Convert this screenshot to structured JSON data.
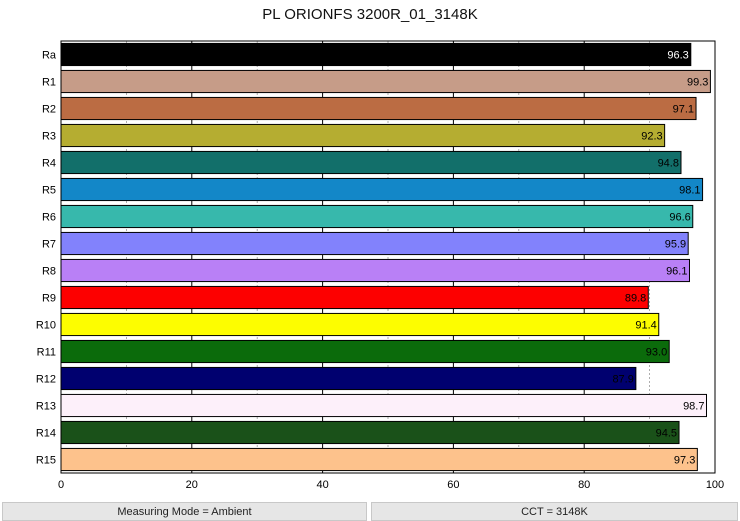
{
  "chart_data": {
    "type": "bar",
    "orientation": "horizontal",
    "title": "PL ORIONFS 3200R_01_3148K",
    "categories": [
      "Ra",
      "R1",
      "R2",
      "R3",
      "R4",
      "R5",
      "R6",
      "R7",
      "R8",
      "R9",
      "R10",
      "R11",
      "R12",
      "R13",
      "R14",
      "R15"
    ],
    "values": [
      96.3,
      99.3,
      97.1,
      92.3,
      94.8,
      98.1,
      96.6,
      95.9,
      96.1,
      89.8,
      91.4,
      93.0,
      87.9,
      98.7,
      94.5,
      97.3
    ],
    "value_labels": [
      "96.3",
      "99.3",
      "97.1",
      "92.3",
      "94.8",
      "98.1",
      "96.6",
      "95.9",
      "96.1",
      "89.8",
      "91.4",
      "93.0",
      "87.9",
      "98.7",
      "94.5",
      "97.3"
    ],
    "colors": [
      "#000000",
      "#c69c88",
      "#bb6c43",
      "#b5ad31",
      "#126f6a",
      "#1387c8",
      "#37b8ac",
      "#8282fc",
      "#b980f6",
      "#fd0000",
      "#fdfd00",
      "#0b6b0b",
      "#00006f",
      "#fdf0fa",
      "#1a5119",
      "#fdc28c"
    ],
    "label_colors": [
      "#ffffff",
      "#000000",
      "#000000",
      "#000000",
      "#000000",
      "#000000",
      "#000000",
      "#000000",
      "#000000",
      "#000000",
      "#000000",
      "#000000",
      "#000000",
      "#000000",
      "#000000",
      "#000000"
    ],
    "xlim": [
      0,
      100
    ],
    "xticks": [
      0,
      20,
      40,
      60,
      80,
      100
    ],
    "xtick_labels": [
      "0",
      "20",
      "40",
      "60",
      "80",
      "100"
    ],
    "minor_grid": [
      10,
      30,
      50,
      70,
      90
    ],
    "grid": true
  },
  "footer": {
    "left": "Measuring Mode = Ambient",
    "right": "CCT = 3148K"
  }
}
